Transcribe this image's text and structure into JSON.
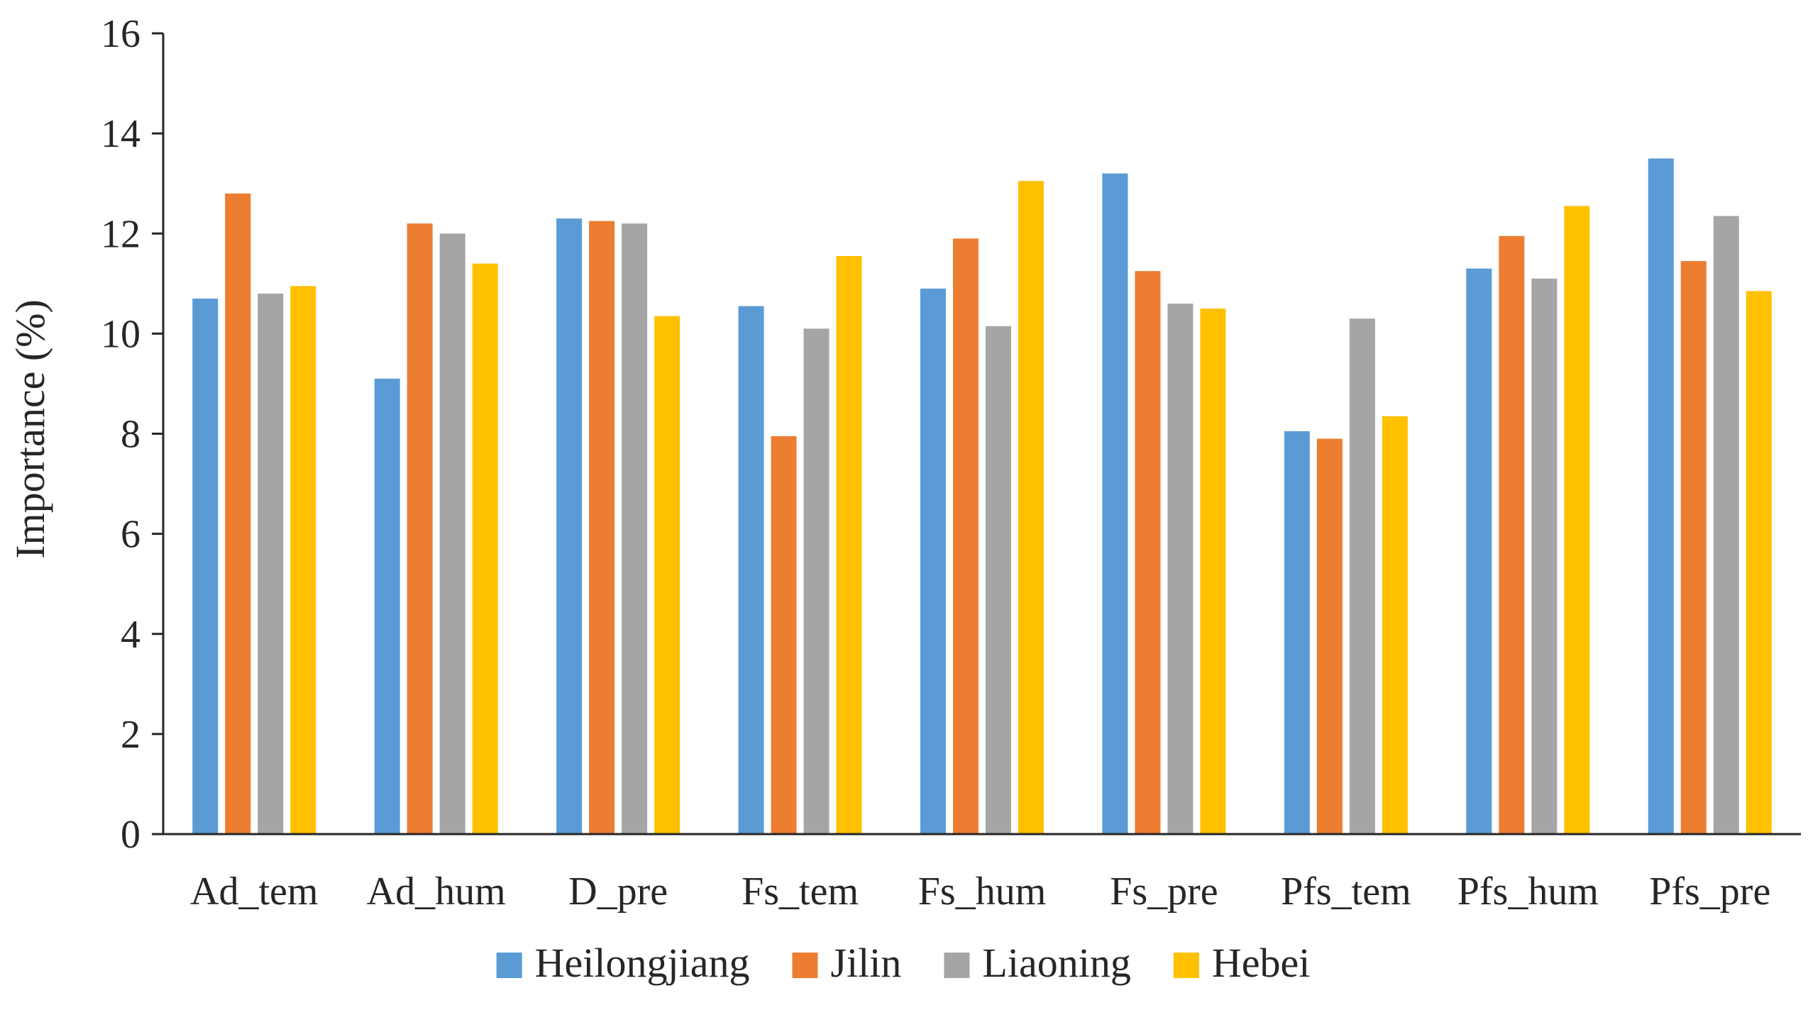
{
  "chart_data": {
    "type": "bar",
    "title": "",
    "xlabel": "",
    "ylabel": "Importance (%)",
    "ylim": [
      0,
      16
    ],
    "yticks": [
      0,
      2,
      4,
      6,
      8,
      10,
      12,
      14,
      16
    ],
    "grid": false,
    "legend_position": "bottom",
    "categories": [
      "Ad_tem",
      "Ad_hum",
      "D_pre",
      "Fs_tem",
      "Fs_hum",
      "Fs_pre",
      "Pfs_tem",
      "Pfs_hum",
      "Pfs_pre"
    ],
    "series": [
      {
        "name": "Heilongjiang",
        "color": "#5B9BD5",
        "values": [
          10.7,
          9.1,
          12.3,
          10.55,
          10.9,
          13.2,
          8.05,
          11.3,
          13.5
        ]
      },
      {
        "name": "Jilin",
        "color": "#ED7D31",
        "values": [
          12.8,
          12.2,
          12.25,
          7.95,
          11.9,
          11.25,
          7.9,
          11.95,
          11.45
        ]
      },
      {
        "name": "Liaoning",
        "color": "#A5A5A5",
        "values": [
          10.8,
          12.0,
          12.2,
          10.1,
          10.15,
          10.6,
          10.3,
          11.1,
          12.35
        ]
      },
      {
        "name": "Hebei",
        "color": "#FFC000",
        "values": [
          10.95,
          11.4,
          10.35,
          11.55,
          13.05,
          10.5,
          8.35,
          12.55,
          10.85
        ]
      }
    ]
  }
}
